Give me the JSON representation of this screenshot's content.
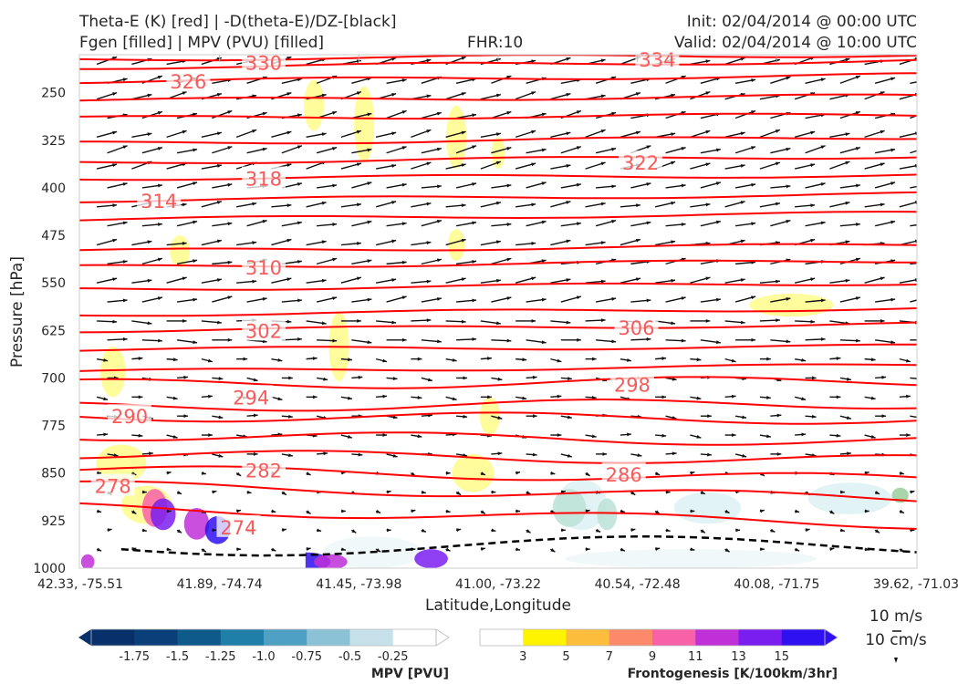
{
  "header": {
    "title_line1": "Theta-E (K) [red] | -D(theta-E)/DZ-[black]",
    "title_line2": "Fgen [filled] | MPV (PVU) [filled]",
    "fhr": "FHR:10",
    "init": "Init: 02/04/2014 @ 00:00 UTC",
    "valid": "Valid: 02/04/2014 @ 10:00 UTC"
  },
  "chart_data": {
    "type": "cross-section",
    "ylabel": "Pressure [hPa]",
    "xlabel": "Latitude,Longitude",
    "y_axis": {
      "scale": "inverted",
      "ticks": [
        250,
        325,
        400,
        475,
        550,
        625,
        700,
        775,
        850,
        925,
        1000
      ],
      "range": [
        190,
        1000
      ]
    },
    "x_ticks": [
      "42.33, -75.51",
      "41.89, -74.74",
      "41.45, -73.98",
      "41.00, -73.22",
      "40.54, -72.48",
      "40.08, -71.75",
      "39.62, -71.03"
    ],
    "theta_e_contours": {
      "color": "#ff0000",
      "labels": [
        {
          "value": "330",
          "x_frac": 0.22,
          "p": 202
        },
        {
          "value": "334",
          "x_frac": 0.69,
          "p": 197
        },
        {
          "value": "326",
          "x_frac": 0.13,
          "p": 232
        },
        {
          "value": "322",
          "x_frac": 0.67,
          "p": 360
        },
        {
          "value": "318",
          "x_frac": 0.22,
          "p": 385
        },
        {
          "value": "314",
          "x_frac": 0.095,
          "p": 420
        },
        {
          "value": "310",
          "x_frac": 0.22,
          "p": 525
        },
        {
          "value": "302",
          "x_frac": 0.22,
          "p": 625
        },
        {
          "value": "306",
          "x_frac": 0.665,
          "p": 620
        },
        {
          "value": "298",
          "x_frac": 0.66,
          "p": 710
        },
        {
          "value": "294",
          "x_frac": 0.205,
          "p": 730
        },
        {
          "value": "290",
          "x_frac": 0.06,
          "p": 760
        },
        {
          "value": "282",
          "x_frac": 0.22,
          "p": 845
        },
        {
          "value": "286",
          "x_frac": 0.65,
          "p": 852
        },
        {
          "value": "278",
          "x_frac": 0.04,
          "p": 870
        },
        {
          "value": "274",
          "x_frac": 0.19,
          "p": 935
        }
      ]
    },
    "wind_reference": {
      "u_label": "10 m/s",
      "w_label": "10 cm/s"
    },
    "colorbars": [
      {
        "title": "MPV [PVU]",
        "ticks": [
          "-1.75",
          "-1.5",
          "-1.25",
          "-1.0",
          "-0.75",
          "-0.5",
          "-0.25"
        ],
        "colors": [
          "#08306b",
          "#0b3f7a",
          "#0e5a8a",
          "#1f7fa8",
          "#4ea1c2",
          "#8cc2d6",
          "#c7e1ea",
          "#ffffff"
        ]
      },
      {
        "title": "Frontogenesis [K/100km/3hr]",
        "ticks": [
          "3",
          "5",
          "7",
          "9",
          "11",
          "13",
          "15"
        ],
        "colors": [
          "#ffffff",
          "#fff400",
          "#fcbc3c",
          "#fc8a6a",
          "#f860a8",
          "#c030d8",
          "#7a1ef0",
          "#2f10f0"
        ]
      }
    ]
  }
}
